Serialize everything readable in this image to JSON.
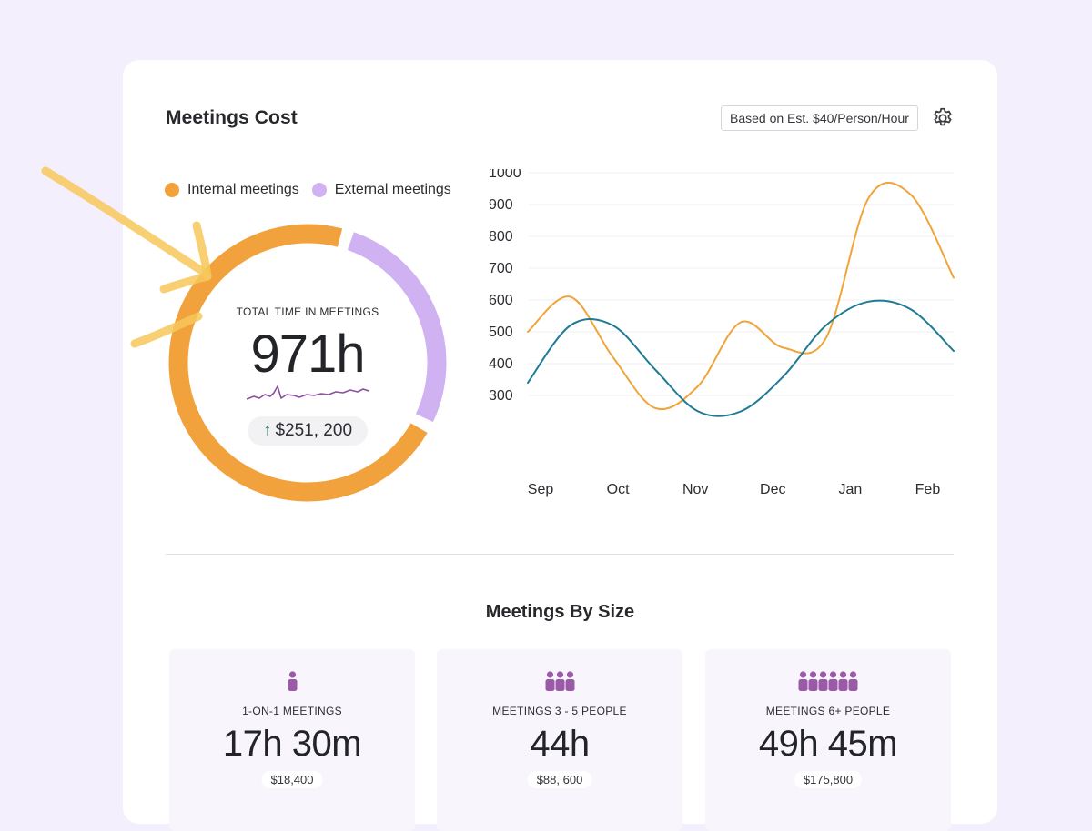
{
  "header": {
    "title": "Meetings Cost",
    "estimate_badge": "Based on Est. $40/Person/Hour",
    "settings_icon": "gear-icon"
  },
  "summary": {
    "legend": [
      {
        "label": "Internal meetings",
        "color": "#f2a23d"
      },
      {
        "label": "External meetings",
        "color": "#d0b2f2"
      }
    ],
    "total_label": "TOTAL TIME IN MEETINGS",
    "total_value": "971h",
    "delta_icon": "arrow-up-icon",
    "delta_value": "$251, 200",
    "donut": {
      "internal_fraction": 0.72,
      "external_fraction": 0.28
    }
  },
  "chart_data": {
    "type": "line",
    "title": "",
    "xlabel": "",
    "ylabel": "",
    "categories": [
      "Sep",
      "Oct",
      "Nov",
      "Dec",
      "Jan",
      "Feb"
    ],
    "yticks": [
      1000,
      900,
      800,
      700,
      600,
      500,
      400,
      300
    ],
    "ylim": [
      200,
      1000
    ],
    "grid": true,
    "x": [
      0,
      0.5,
      1,
      1.5,
      2,
      2.5,
      3,
      3.5,
      4,
      4.5,
      5
    ],
    "series": [
      {
        "name": "Internal meetings",
        "color": "#f0a43a",
        "values": [
          500,
          610,
          420,
          260,
          330,
          530,
          450,
          480,
          920,
          930,
          670
        ]
      },
      {
        "name": "External meetings",
        "color": "#1f7b95",
        "values": [
          340,
          520,
          520,
          380,
          250,
          250,
          360,
          520,
          595,
          570,
          440
        ]
      }
    ]
  },
  "meetings_by_size": {
    "title": "Meetings By Size",
    "tiles": [
      {
        "icon": "person-icon",
        "people": 1,
        "label": "1-ON-1 MEETINGS",
        "value": "17h 30m",
        "cost": "$18,400"
      },
      {
        "icon": "group-icon",
        "people": 3,
        "label": "MEETINGS 3 - 5 PEOPLE",
        "value": "44h",
        "cost": "$88, 600"
      },
      {
        "icon": "crowd-icon",
        "people": 6,
        "label": "MEETINGS 6+ PEOPLE",
        "value": "49h 45m",
        "cost": "$175,800"
      }
    ]
  },
  "colors": {
    "background": "#f4effc",
    "internal": "#f2a23d",
    "external": "#d0b2f2",
    "line_external": "#1f7b95",
    "people_icon": "#9a5aa8",
    "sparkline": "#8b4fa0",
    "delta_arrow": "#2f7d5b"
  }
}
